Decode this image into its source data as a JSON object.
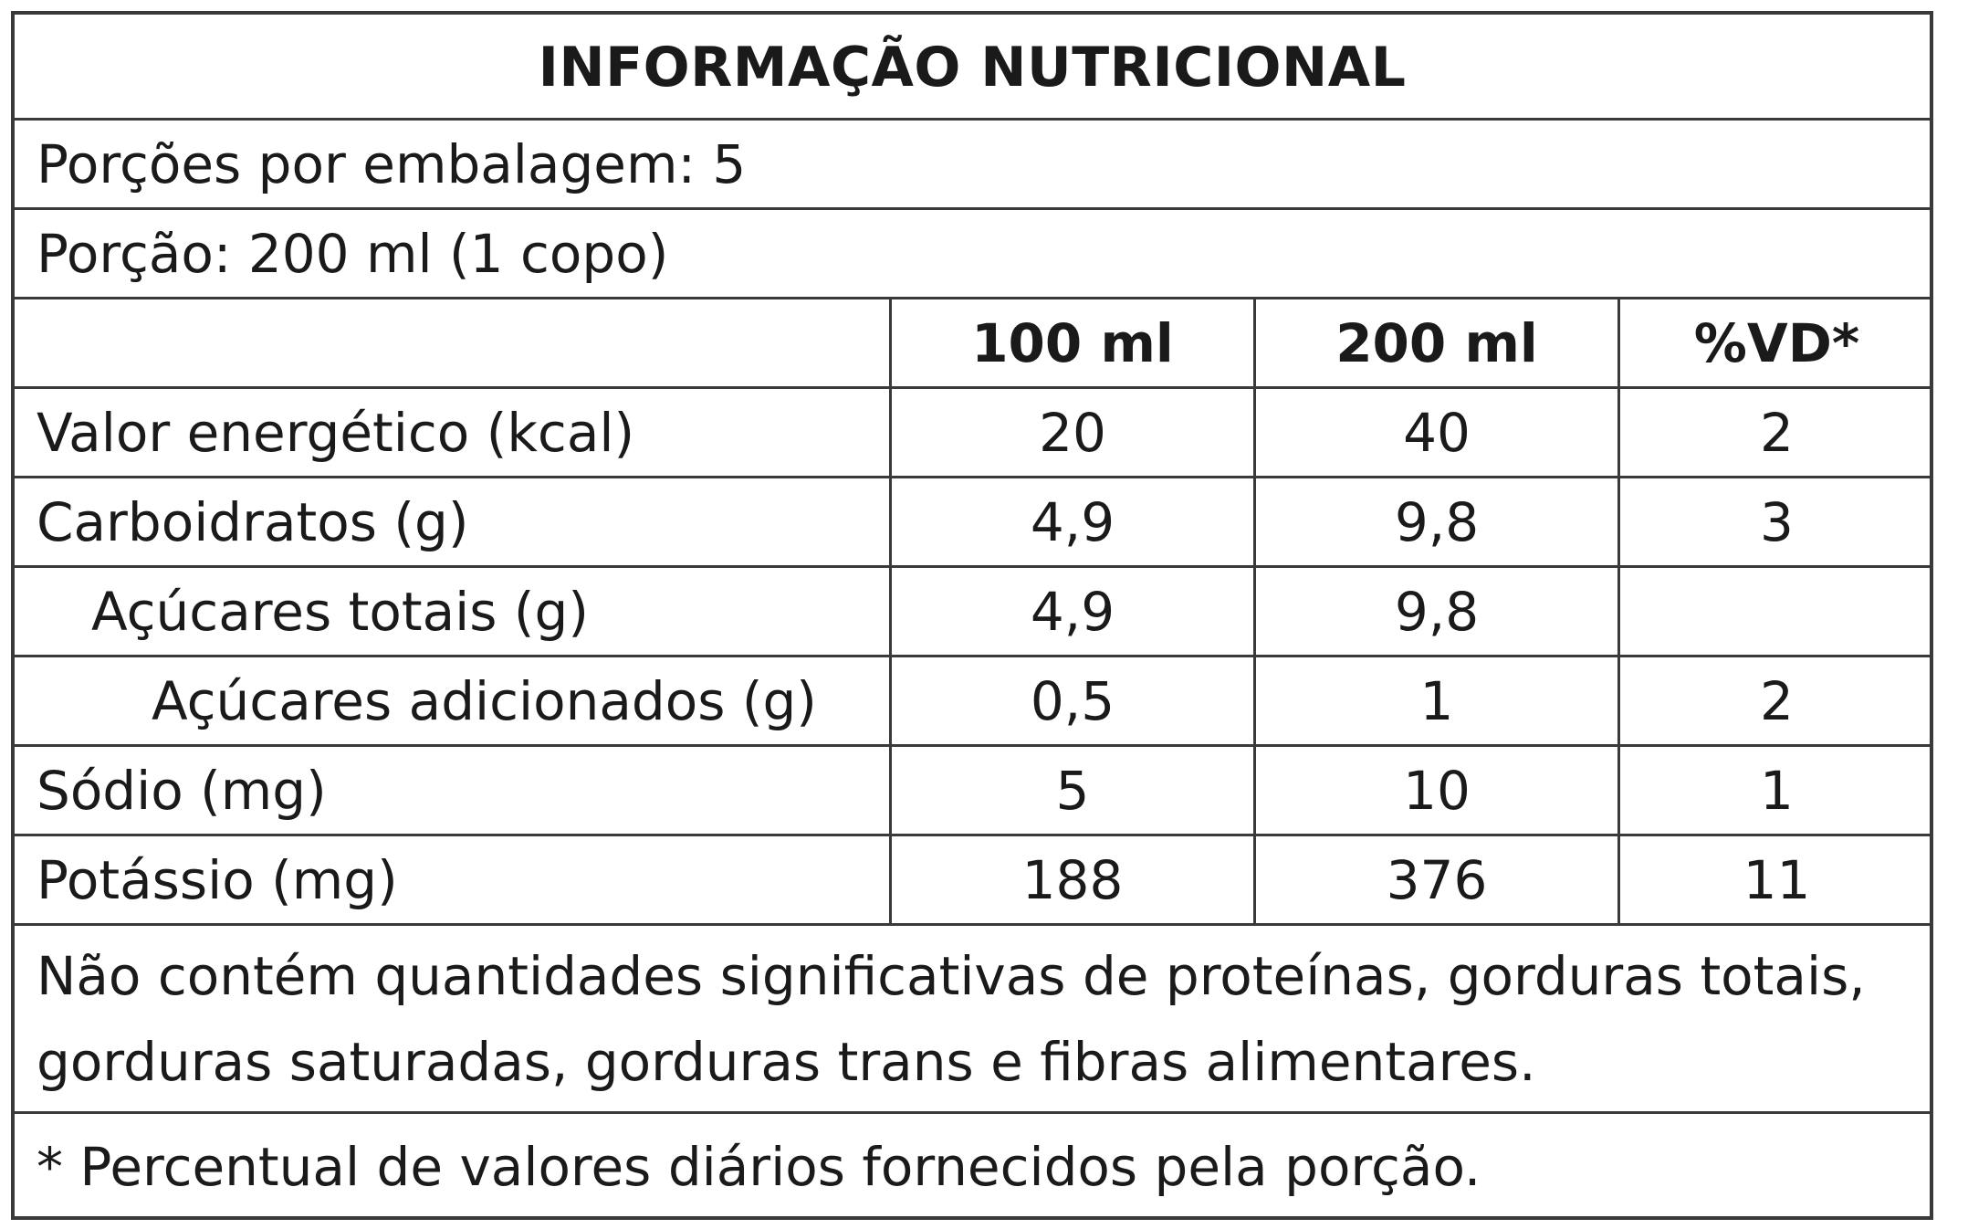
{
  "title": "INFORMAÇÃO NUTRICIONAL",
  "servings_per_package": "Porções por embalagem: 5",
  "serving_size": "Porção: 200 ml (1 copo)",
  "columns": [
    "100 ml",
    "200 ml",
    "%VD*"
  ],
  "rows": [
    {
      "name": "Valor energético (kcal)",
      "v100": "20",
      "v200": "40",
      "vd": "2"
    },
    {
      "name": "Carboidratos (g)",
      "v100": "4,9",
      "v200": "9,8",
      "vd": "3"
    },
    {
      "name": "Açúcares totais (g)",
      "v100": "4,9",
      "v200": "9,8",
      "vd": ""
    },
    {
      "name": "Açúcares adicionados (g)",
      "v100": "0,5",
      "v200": "1",
      "vd": "2"
    },
    {
      "name": "Sódio (mg)",
      "v100": "5",
      "v200": "10",
      "vd": "1"
    },
    {
      "name": "Potássio (mg)",
      "v100": "188",
      "v200": "376",
      "vd": "11"
    }
  ],
  "note": "Não contém quantidades significativas de proteínas, gorduras totais, gorduras saturadas, gorduras trans e fibras alimentares.",
  "footnote": "* Percentual de valores diários fornecidos pela porção."
}
